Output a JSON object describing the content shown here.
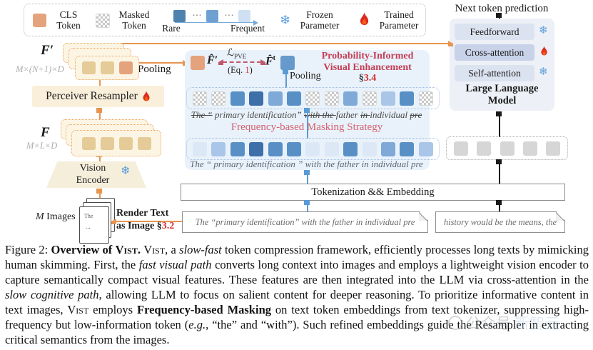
{
  "colors": {
    "orange": "#e8944f",
    "blue": "#5b9bd5",
    "salmon": "#e4a37d",
    "red": "#d43030",
    "crimson": "#c43e55",
    "pink": "#d4606f"
  },
  "legend": {
    "cls": "CLS Token",
    "masked": "Masked Token",
    "dots": "···",
    "rare": "Rare",
    "frequent": "Frequent",
    "frozen": "Frozen Parameter",
    "trained": "Trained Parameter",
    "snowflake_glyph": "❄"
  },
  "left": {
    "f_prime": "F",
    "prime": "′",
    "f_prime_dim": "M×(N+1)×D",
    "pooling": "Pooling",
    "perceiver": "Perceiver Resampler",
    "f": "F",
    "f_dim": "M×L×D",
    "vision_line1": "Vision",
    "vision_line2": "Encoder",
    "m_label": "M",
    "images_label": "Images",
    "doc_line1": "The",
    "doc_line2": "...",
    "render_line1": "Render Text",
    "render_line2": "as Image §",
    "render_section": "3.2",
    "f_prime_rows": [
      [
        "tan",
        "tan",
        "salmon"
      ],
      [
        "tan",
        "tan",
        "salmon"
      ],
      [
        "tan",
        "tan",
        "salmon"
      ]
    ],
    "f_rows": [
      [
        "tan",
        "tan",
        "tan",
        "tan"
      ],
      [
        "tan",
        "tan",
        "tan",
        "tan"
      ],
      [
        "tan",
        "tan",
        "tan",
        "tan"
      ]
    ]
  },
  "pve": {
    "f_hat": "F̂",
    "prime": "′",
    "sup_t": "t",
    "loss_sym": "ℒ",
    "loss_sub": "PVE",
    "eq_pre": "(Eq. ",
    "eq_num": "1",
    "eq_post": ")",
    "title1": "Probability-Informed",
    "title2": "Visual Enhancement",
    "sec_sym": "§",
    "sec_num": "3.4",
    "pooling": "Pooling",
    "masking_label": "Frequency-based Masking Strategy",
    "masked_row": [
      "mask",
      "mask",
      "med",
      "dark",
      "mlight",
      "med",
      "mask",
      "mask",
      "mlight",
      "mask",
      "light",
      "med",
      "mask"
    ],
    "plain_row": [
      "vlight",
      "light",
      "med",
      "dark",
      "med",
      "med",
      "vlight",
      "vlight",
      "med",
      "vlight",
      "mlight",
      "med",
      "light"
    ],
    "struck_segments": [
      {
        "t": "The ",
        "c": "s"
      },
      {
        "t": "“",
        "c": "s"
      },
      {
        "t": " primary identification” ",
        "c": ""
      },
      {
        "t": "with ",
        "c": "s"
      },
      {
        "t": "the ",
        "c": "s"
      },
      {
        "t": "father ",
        "c": ""
      },
      {
        "t": "in ",
        "c": "s"
      },
      {
        "t": "individual ",
        "c": ""
      },
      {
        "t": "pre",
        "c": "s"
      }
    ],
    "sentence": "The “ primary identification ” with the father in individual pre"
  },
  "llm": {
    "next_token": "Next token prediction",
    "rows": [
      {
        "label": "Feedforward",
        "icon": "snowflake"
      },
      {
        "label": "Cross-attention",
        "icon": "fire"
      },
      {
        "label": "Self-attention",
        "icon": "snowflake"
      }
    ],
    "name_line1": "Large Language",
    "name_line2": "Model",
    "gray_row": [
      "gray",
      "gray",
      "gray",
      "gray",
      "gray"
    ]
  },
  "bottom": {
    "tokenization": "Tokenization && Embedding",
    "left_note": "The “primary identification” with the father in individual pre",
    "right_note": "history would be the means, the"
  },
  "caption": {
    "segments": [
      {
        "t": "Figure 2: ",
        "c": ""
      },
      {
        "t": "Overview of ",
        "c": "b"
      },
      {
        "t": "Vist",
        "c": "b sc"
      },
      {
        "t": ". ",
        "c": "b"
      },
      {
        "t": "Vist",
        "c": "sc"
      },
      {
        "t": ", a ",
        "c": ""
      },
      {
        "t": "slow-fast",
        "c": "i"
      },
      {
        "t": " token compression framework, efficiently processes long texts by mimicking human skimming. First, the ",
        "c": ""
      },
      {
        "t": "fast visual path",
        "c": "i"
      },
      {
        "t": " converts long context into images and employs a lightweight vision encoder to capture semantically compact visual features. These features are then integrated into the LLM via cross-attention in the ",
        "c": ""
      },
      {
        "t": "slow cognitive path",
        "c": "i"
      },
      {
        "t": ", allowing LLM to focus on salient content for deeper reasoning. To prioritize informative content in text images, ",
        "c": ""
      },
      {
        "t": "Vist",
        "c": "sc"
      },
      {
        "t": " employs ",
        "c": ""
      },
      {
        "t": "Frequency-based Masking",
        "c": "b"
      },
      {
        "t": " on text token embeddings from text tokenizer, suppressing high-frequency but low-information token (",
        "c": ""
      },
      {
        "t": "e.g.",
        "c": "i"
      },
      {
        "t": ", “the” and “with”). Such refined embeddings guide the Resampler in extracting critical semantics from the images.",
        "c": ""
      }
    ]
  },
  "watermark": {
    "t1": "公众号",
    "t2": "新智元"
  }
}
